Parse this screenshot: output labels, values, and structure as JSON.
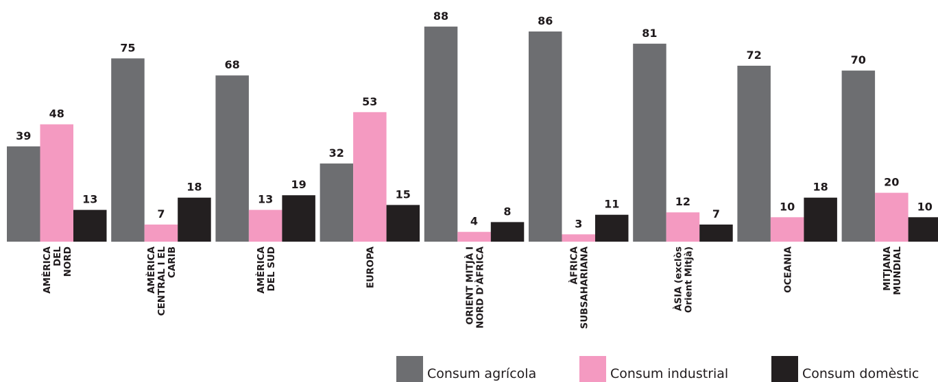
{
  "chart_data": {
    "type": "bar",
    "categories": [
      [
        "AMÈRICA",
        "DEL",
        "NORD"
      ],
      [
        "AMÈRICA",
        "CENTRAL I EL",
        "CARIB"
      ],
      [
        "AMÈRICA",
        "DEL SUD"
      ],
      [
        "EUROPA"
      ],
      [
        "ORIENT MITJÀ I",
        "NORD D'ÀFRICA"
      ],
      [
        "ÀFRICA",
        "SUBSAHARIANA"
      ],
      [
        "ÀSIA (exclòs",
        "Orient Mitjà)"
      ],
      [
        "OCEANIA"
      ],
      [
        "MITJANA",
        "MUNDIAL"
      ]
    ],
    "series": [
      {
        "name": "Consum agrícola",
        "color": "#6d6e71",
        "values": [
          39,
          75,
          68,
          32,
          88,
          86,
          81,
          72,
          70
        ]
      },
      {
        "name": "Consum industrial",
        "color": "#f49ac1",
        "values": [
          48,
          7,
          13,
          53,
          4,
          3,
          12,
          10,
          20
        ]
      },
      {
        "name": "Consum domèstic",
        "color": "#231f20",
        "values": [
          13,
          18,
          19,
          15,
          8,
          11,
          7,
          18,
          10
        ]
      }
    ],
    "ylim": [
      0,
      100
    ],
    "grid": false,
    "legend_position": "bottom-right",
    "title": "",
    "xlabel": "",
    "ylabel": ""
  }
}
